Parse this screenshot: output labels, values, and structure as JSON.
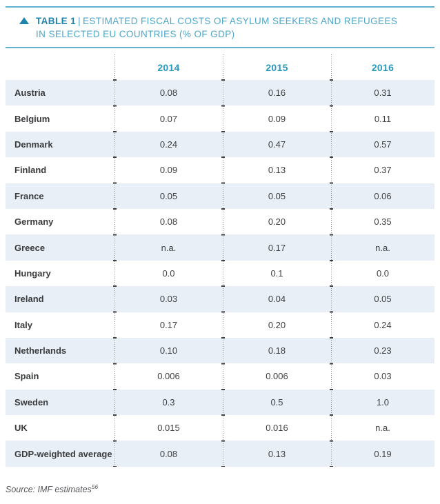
{
  "caption": {
    "marker_icon": "triangle-up-icon",
    "label": "TABLE 1",
    "separator": "|",
    "line1": "ESTIMATED FISCAL COSTS OF ASYLUM SEEKERS AND REFUGEES",
    "line2": "IN SELECTED EU COUNTRIES (% OF GDP)"
  },
  "source": {
    "text": "Source: IMF estimates",
    "footnote_ref": "56"
  },
  "chart_data": {
    "type": "table",
    "title": "TABLE 1 | ESTIMATED FISCAL COSTS OF ASYLUM SEEKERS AND REFUGEES IN SELECTED EU COUNTRIES (% OF GDP)",
    "unit": "% of GDP",
    "columns": [
      "2014",
      "2015",
      "2016"
    ],
    "rows": [
      {
        "label": "Austria",
        "values": [
          "0.08",
          "0.16",
          "0.31"
        ]
      },
      {
        "label": "Belgium",
        "values": [
          "0.07",
          "0.09",
          "0.11"
        ]
      },
      {
        "label": "Denmark",
        "values": [
          "0.24",
          "0.47",
          "0.57"
        ]
      },
      {
        "label": "Finland",
        "values": [
          "0.09",
          "0.13",
          "0.37"
        ]
      },
      {
        "label": "France",
        "values": [
          "0.05",
          "0.05",
          "0.06"
        ]
      },
      {
        "label": "Germany",
        "values": [
          "0.08",
          "0.20",
          "0.35"
        ]
      },
      {
        "label": "Greece",
        "values": [
          "n.a.",
          "0.17",
          "n.a."
        ]
      },
      {
        "label": "Hungary",
        "values": [
          "0.0",
          "0.1",
          "0.0"
        ]
      },
      {
        "label": "Ireland",
        "values": [
          "0.03",
          "0.04",
          "0.05"
        ]
      },
      {
        "label": "Italy",
        "values": [
          "0.17",
          "0.20",
          "0.24"
        ]
      },
      {
        "label": "Netherlands",
        "values": [
          "0.10",
          "0.18",
          "0.23"
        ]
      },
      {
        "label": "Spain",
        "values": [
          "0.006",
          "0.006",
          "0.03"
        ]
      },
      {
        "label": "Sweden",
        "values": [
          "0.3",
          "0.5",
          "1.0"
        ]
      },
      {
        "label": "UK",
        "values": [
          "0.015",
          "0.016",
          "n.a."
        ]
      },
      {
        "label": "GDP-weighted average",
        "values": [
          "0.08",
          "0.13",
          "0.19"
        ]
      }
    ],
    "source": "Source: IMF estimates (footnote 56)"
  },
  "colors": {
    "accent_dark": "#1e83ad",
    "accent_light": "#4ea6c8",
    "rule": "#62b0d0",
    "year_header": "#2798bf",
    "row_shade": "#e8eff6",
    "text_dark": "#3e3f41"
  }
}
